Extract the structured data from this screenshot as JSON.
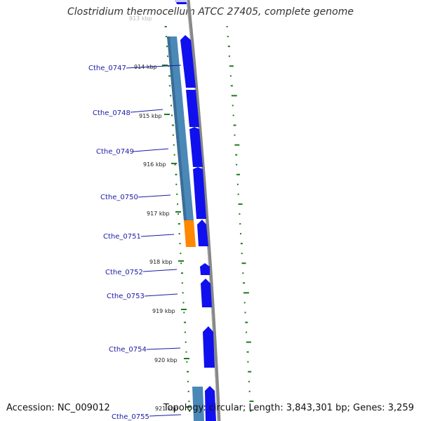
{
  "title": "Clostridium thermocellum ATCC 27405, complete genome",
  "accession": "Accession: NC_009012",
  "summary": "Topology: circular; Length: 3,843,301 bp; Genes: 3,259",
  "colors": {
    "gene_forward": "#1010ee",
    "cds_feature": "#4a88b8",
    "rna_feature": "#ff8800",
    "backbone": "#888888",
    "gc_skew": "#1f7a1f",
    "label": "#1a1aa6"
  },
  "scale": {
    "ticks": [
      "913 kbp",
      "914 kbp",
      "915 kbp",
      "916 kbp",
      "917 kbp",
      "918 kbp",
      "919 kbp",
      "920 kbp",
      "921 kbp"
    ]
  },
  "genes": [
    {
      "label": "Cthe_0747"
    },
    {
      "label": "Cthe_0748"
    },
    {
      "label": "Cthe_0749"
    },
    {
      "label": "Cthe_0750"
    },
    {
      "label": "Cthe_0751"
    },
    {
      "label": "Cthe_0752"
    },
    {
      "label": "Cthe_0753"
    },
    {
      "label": "Cthe_0754"
    },
    {
      "label": "Cthe_0755"
    }
  ]
}
